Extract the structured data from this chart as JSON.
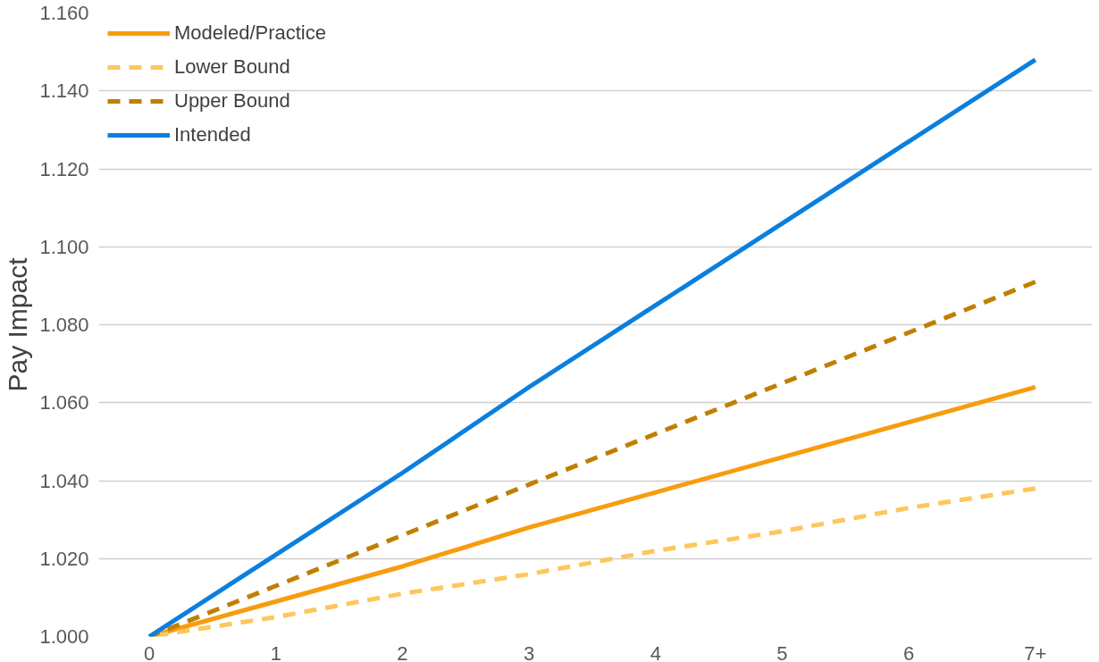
{
  "chart_data": {
    "type": "line",
    "ylabel": "Pay Impact",
    "categories": [
      "0",
      "1",
      "2",
      "3",
      "4",
      "5",
      "6",
      "7+"
    ],
    "ylim": [
      1.0,
      1.16
    ],
    "yticks": [
      {
        "value": 1.0,
        "label": "1.000"
      },
      {
        "value": 1.02,
        "label": "1.020"
      },
      {
        "value": 1.04,
        "label": "1.040"
      },
      {
        "value": 1.06,
        "label": "1.060"
      },
      {
        "value": 1.08,
        "label": "1.080"
      },
      {
        "value": 1.1,
        "label": "1.100"
      },
      {
        "value": 1.12,
        "label": "1.120"
      },
      {
        "value": 1.14,
        "label": "1.140"
      },
      {
        "value": 1.16,
        "label": "1.160"
      }
    ],
    "grid": "y",
    "legend": "top left",
    "marker": "none",
    "series": [
      {
        "name": "Modeled/Practice",
        "color": "#f89c0e",
        "line_style": "solid",
        "values": [
          1.0,
          1.009,
          1.018,
          1.028,
          1.037,
          1.046,
          1.055,
          1.064
        ]
      },
      {
        "name": "Lower Bound",
        "color": "#ffc65c",
        "line_style": "dashed",
        "values": [
          1.0,
          1.005,
          1.011,
          1.016,
          1.022,
          1.027,
          1.033,
          1.038
        ]
      },
      {
        "name": "Upper Bound",
        "color": "#c07f00",
        "line_style": "dashed",
        "values": [
          1.0,
          1.013,
          1.026,
          1.039,
          1.052,
          1.065,
          1.078,
          1.091
        ]
      },
      {
        "name": "Intended",
        "color": "#0a7fe0",
        "line_style": "solid",
        "values": [
          1.0,
          1.021,
          1.042,
          1.064,
          1.085,
          1.106,
          1.127,
          1.148
        ]
      }
    ]
  }
}
